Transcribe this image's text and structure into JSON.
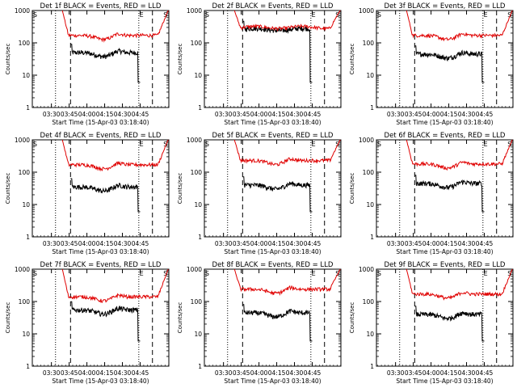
{
  "chart_data": [
    {
      "type": "line",
      "title": "Det 1f BLACK = Events, RED = LLD",
      "ylabel": "Counts/sec",
      "xlabel": "Start Time (15-Apr-03 03:18:40)",
      "xticks": [
        "03:30",
        "03:45",
        "04:00",
        "04:15",
        "04:30",
        "04:45"
      ],
      "yticks": [
        "1",
        "10",
        "100",
        "1000"
      ],
      "yscale": "log",
      "ylim": [
        1,
        1000
      ],
      "xlim_minutes_from_start": [
        0,
        98
      ],
      "markers": [
        "S",
        "E",
        "S"
      ],
      "series": [
        {
          "color": "#000000",
          "shape": "standard",
          "level": 50
        },
        {
          "color": "#e00000",
          "shape": "standard",
          "level": 170
        }
      ]
    },
    {
      "type": "line",
      "title": "Det 2f BLACK = Events, RED = LLD",
      "ylabel": "Counts/sec",
      "xlabel": "Start Time (15-Apr-03 03:18:40)",
      "xticks": [
        "03:30",
        "03:45",
        "04:00",
        "04:15",
        "04:30",
        "04:45"
      ],
      "yticks": [
        "1",
        "10",
        "100",
        "1000"
      ],
      "yscale": "log",
      "ylim": [
        1,
        1000
      ],
      "xlim_minutes_from_start": [
        0,
        98
      ],
      "markers": [
        "S",
        "E",
        "S"
      ],
      "series": [
        {
          "color": "#000000",
          "shape": "flat",
          "level": 260
        },
        {
          "color": "#e00000",
          "shape": "flat",
          "level": 300
        }
      ]
    },
    {
      "type": "line",
      "title": "Det 3f BLACK = Events, RED = LLD",
      "ylabel": "Counts/sec",
      "xlabel": "Start Time (15-Apr-03 03:18:40)",
      "xticks": [
        "03:30",
        "03:45",
        "04:00",
        "04:15",
        "04:30",
        "04:45"
      ],
      "yticks": [
        "1",
        "10",
        "100",
        "1000"
      ],
      "yscale": "log",
      "ylim": [
        1,
        1000
      ],
      "xlim_minutes_from_start": [
        0,
        98
      ],
      "markers": [
        "S",
        "E",
        "S"
      ],
      "series": [
        {
          "color": "#000000",
          "shape": "standard",
          "level": 45
        },
        {
          "color": "#e00000",
          "shape": "standard",
          "level": 170
        }
      ]
    },
    {
      "type": "line",
      "title": "Det 4f BLACK = Events, RED = LLD",
      "ylabel": "Counts/sec",
      "xlabel": "Start Time (15-Apr-03 03:18:40)",
      "xticks": [
        "03:30",
        "03:45",
        "04:00",
        "04:15",
        "04:30",
        "04:45"
      ],
      "yticks": [
        "1",
        "10",
        "100",
        "1000"
      ],
      "yscale": "log",
      "ylim": [
        1,
        1000
      ],
      "xlim_minutes_from_start": [
        0,
        98
      ],
      "markers": [
        "S",
        "E",
        "S"
      ],
      "series": [
        {
          "color": "#000000",
          "shape": "standard",
          "level": 35
        },
        {
          "color": "#e00000",
          "shape": "standard",
          "level": 170
        }
      ]
    },
    {
      "type": "line",
      "title": "Det 5f BLACK = Events, RED = LLD",
      "ylabel": "Counts/sec",
      "xlabel": "Start Time (15-Apr-03 03:18:40)",
      "xticks": [
        "03:30",
        "03:45",
        "04:00",
        "04:15",
        "04:30",
        "04:45"
      ],
      "yticks": [
        "1",
        "10",
        "100",
        "1000"
      ],
      "yscale": "log",
      "ylim": [
        1,
        1000
      ],
      "xlim_minutes_from_start": [
        0,
        98
      ],
      "markers": [
        "S",
        "E",
        "S"
      ],
      "series": [
        {
          "color": "#000000",
          "shape": "standard",
          "level": 40
        },
        {
          "color": "#e00000",
          "shape": "standard",
          "level": 230
        }
      ]
    },
    {
      "type": "line",
      "title": "Det 6f BLACK = Events, RED = LLD",
      "ylabel": "Counts/sec",
      "xlabel": "Start Time (15-Apr-03 03:18:40)",
      "xticks": [
        "03:30",
        "03:45",
        "04:00",
        "04:15",
        "04:30",
        "04:45"
      ],
      "yticks": [
        "1",
        "10",
        "100",
        "1000"
      ],
      "yscale": "log",
      "ylim": [
        1,
        1000
      ],
      "xlim_minutes_from_start": [
        0,
        98
      ],
      "markers": [
        "S",
        "E",
        "S"
      ],
      "series": [
        {
          "color": "#000000",
          "shape": "standard",
          "level": 45
        },
        {
          "color": "#e00000",
          "shape": "standard",
          "level": 180
        }
      ]
    },
    {
      "type": "line",
      "title": "Det 7f BLACK = Events, RED = LLD",
      "ylabel": "Counts/sec",
      "xlabel": "Start Time (15-Apr-03 03:18:40)",
      "xticks": [
        "03:30",
        "03:45",
        "04:00",
        "04:15",
        "04:30",
        "04:45"
      ],
      "yticks": [
        "1",
        "10",
        "100",
        "1000"
      ],
      "yscale": "log",
      "ylim": [
        1,
        1000
      ],
      "xlim_minutes_from_start": [
        0,
        98
      ],
      "markers": [
        "S",
        "E",
        "S"
      ],
      "series": [
        {
          "color": "#000000",
          "shape": "standard",
          "level": 55
        },
        {
          "color": "#e00000",
          "shape": "standard",
          "level": 140
        }
      ]
    },
    {
      "type": "line",
      "title": "Det 8f BLACK = Events, RED = LLD",
      "ylabel": "Counts/sec",
      "xlabel": "Start Time (15-Apr-03 03:18:40)",
      "xticks": [
        "03:30",
        "03:45",
        "04:00",
        "04:15",
        "04:30",
        "04:45"
      ],
      "yticks": [
        "1",
        "10",
        "100",
        "1000"
      ],
      "yscale": "log",
      "ylim": [
        1,
        1000
      ],
      "xlim_minutes_from_start": [
        0,
        98
      ],
      "markers": [
        "S",
        "E",
        "S"
      ],
      "series": [
        {
          "color": "#000000",
          "shape": "standard",
          "level": 45
        },
        {
          "color": "#e00000",
          "shape": "standard",
          "level": 240
        }
      ]
    },
    {
      "type": "line",
      "title": "Det 9f BLACK = Events, RED = LLD",
      "ylabel": "Counts/sec",
      "xlabel": "Start Time (15-Apr-03 03:18:40)",
      "xticks": [
        "03:30",
        "03:45",
        "04:00",
        "04:15",
        "04:30",
        "04:45"
      ],
      "yticks": [
        "1",
        "10",
        "100",
        "1000"
      ],
      "yscale": "log",
      "ylim": [
        1,
        1000
      ],
      "xlim_minutes_from_start": [
        0,
        98
      ],
      "markers": [
        "S",
        "E",
        "S"
      ],
      "series": [
        {
          "color": "#000000",
          "shape": "standard",
          "level": 40
        },
        {
          "color": "#e00000",
          "shape": "standard",
          "level": 170
        }
      ]
    }
  ]
}
